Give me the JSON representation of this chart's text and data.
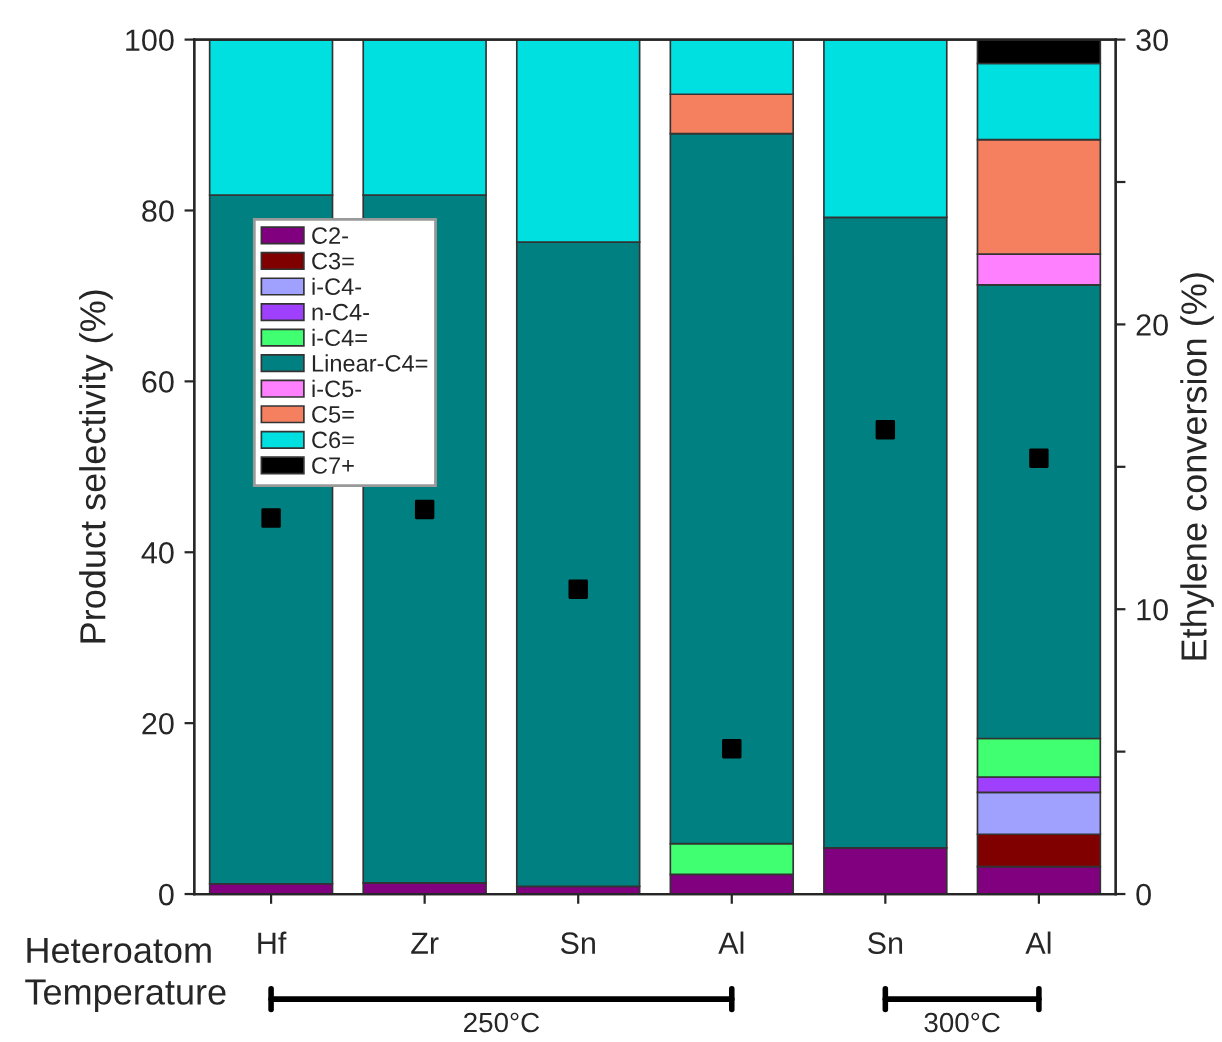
{
  "chart_data": {
    "type": "bar",
    "stacked": true,
    "categories": [
      "Hf",
      "Zr",
      "Sn",
      "Al",
      "Sn",
      "Al"
    ],
    "ylabel": "Product selectivity (%)",
    "y2label": "Ethylene conversion (%)",
    "ylim": [
      0,
      100
    ],
    "yticks": [
      0,
      20,
      40,
      60,
      80,
      100
    ],
    "y2lim": [
      0,
      30
    ],
    "y2ticks": [
      0,
      {
        "value": 5,
        "label": null
      },
      10,
      {
        "value": 15,
        "label": null
      },
      20,
      {
        "value": 25,
        "label": null
      },
      30
    ],
    "legend": "top left",
    "grid": false,
    "annotations": [
      "Heteroatom",
      "Temperature",
      "250°C",
      "300°C"
    ],
    "series": [
      {
        "name": "C2-",
        "color": "#800080",
        "values": [
          1.2,
          1.3,
          0.9,
          2.3,
          5.4,
          3.2
        ]
      },
      {
        "name": "C3=",
        "color": "#800000",
        "values": [
          null,
          null,
          null,
          null,
          null,
          3.8
        ]
      },
      {
        "name": "i-C4-",
        "color": "#a0a0ff",
        "values": [
          null,
          null,
          null,
          null,
          null,
          4.9
        ]
      },
      {
        "name": "n-C4-",
        "color": "#a040ff",
        "values": [
          null,
          null,
          null,
          null,
          null,
          1.8
        ]
      },
      {
        "name": "i-C4=",
        "color": "#40ff70",
        "values": [
          null,
          null,
          null,
          3.6,
          null,
          4.5
        ]
      },
      {
        "name": "Linear-C4=",
        "color": "#008080",
        "values": [
          80.6,
          80.5,
          75.4,
          83.1,
          73.8,
          53.1
        ]
      },
      {
        "name": "i-C5-",
        "color": "#ff80ff",
        "values": [
          null,
          null,
          null,
          null,
          null,
          3.6
        ]
      },
      {
        "name": "C5=",
        "color": "#f58060",
        "values": [
          null,
          null,
          null,
          4.6,
          null,
          13.4
        ]
      },
      {
        "name": "C6=",
        "color": "#00e0e0",
        "values": [
          18.2,
          18.2,
          23.7,
          6.4,
          20.8,
          8.9
        ]
      },
      {
        "name": "C7+",
        "color": "#000000",
        "values": [
          null,
          null,
          null,
          null,
          null,
          2.8
        ]
      },
      {
        "type": "scatter",
        "axis": "y2",
        "marker": "square",
        "color": "#000000",
        "values": [
          13.2,
          13.5,
          10.7,
          5.1,
          16.3,
          15.3
        ]
      }
    ]
  }
}
